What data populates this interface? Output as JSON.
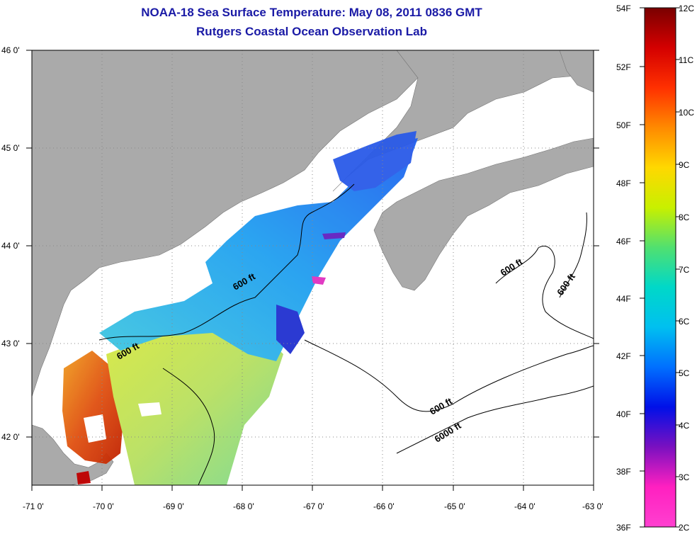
{
  "title": "NOAA-18 Sea Surface Temperature:  May 08, 2011 0836 GMT",
  "subtitle": "Rutgers Coastal Ocean Observation Lab",
  "map": {
    "lon_range": [
      -71,
      -63
    ],
    "lat_range": [
      41.5,
      46
    ],
    "lon_ticks": [
      "-71 0'",
      "-70 0'",
      "-69 0'",
      "-68 0'",
      "-67 0'",
      "-66 0'",
      "-65 0'",
      "-64 0'",
      "-63 0'"
    ],
    "lat_ticks": [
      "46 0'",
      "45 0'",
      "44 0'",
      "43 0'",
      "42 0'"
    ],
    "grid": "dotted",
    "colors": {
      "land": "#aaaaaa",
      "no_data": "#ffffff",
      "contour": "#000000"
    },
    "contour_labels": [
      "600 ft",
      "600 ft",
      "600 ft",
      "600 ft",
      "600 ft",
      "6000 ft"
    ]
  },
  "colorbar": {
    "fahrenheit_labels": [
      "54F",
      "52F",
      "50F",
      "48F",
      "46F",
      "44F",
      "42F",
      "40F",
      "38F",
      "36F"
    ],
    "celsius_labels": [
      "12C",
      "11C",
      "10C",
      "9C",
      "8C",
      "7C",
      "6C",
      "5C",
      "4C",
      "3C",
      "2C"
    ],
    "gradient": [
      "#7a0000",
      "#d40000",
      "#ff3000",
      "#ff8a00",
      "#ffd800",
      "#c8f000",
      "#50e070",
      "#00d8c8",
      "#00c0f0",
      "#0070ff",
      "#0010e8",
      "#7a10c0",
      "#ff20c0",
      "#ff40d0"
    ]
  }
}
